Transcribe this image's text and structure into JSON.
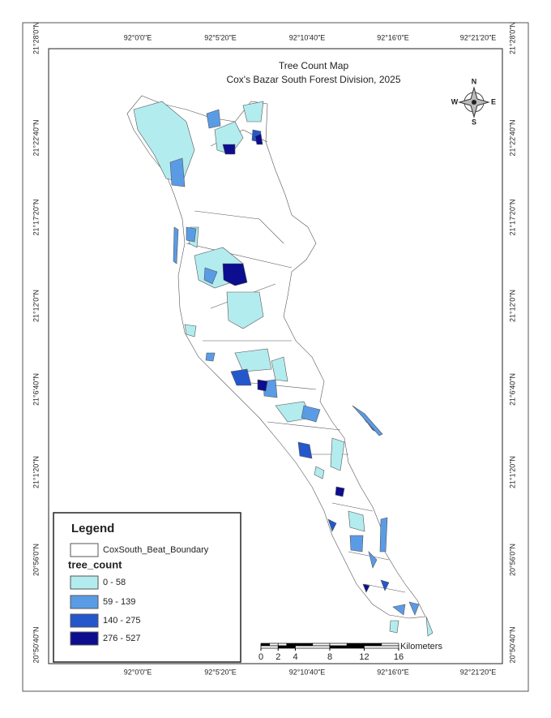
{
  "title": {
    "line1": "Tree Count Map",
    "line2": "Cox's Bazar South Forest Division, 2025"
  },
  "graticule": {
    "longitudes": [
      "92°0'0\"E",
      "92°5'20\"E",
      "92°10'40\"E",
      "92°16'0\"E",
      "92°21'20\"E"
    ],
    "latitudes": [
      "21°28'0\"N",
      "21°22'40\"N",
      "21°17'20\"N",
      "21°12'0\"N",
      "21°6'40\"N",
      "21°1'20\"N",
      "20°56'0\"N",
      "20°50'40\"N"
    ]
  },
  "compass": {
    "north": "N",
    "south": "S",
    "east": "E",
    "west": "W"
  },
  "legend": {
    "title": "Legend",
    "boundary": "CoxSouth_Beat_Boundary",
    "field": "tree_count",
    "classes": [
      "0 - 58",
      "59 - 139",
      "140 - 275",
      "276 - 527"
    ]
  },
  "scale_bar": {
    "ticks": [
      0,
      2,
      4,
      8,
      12,
      16
    ],
    "unit": "Kilometers"
  }
}
